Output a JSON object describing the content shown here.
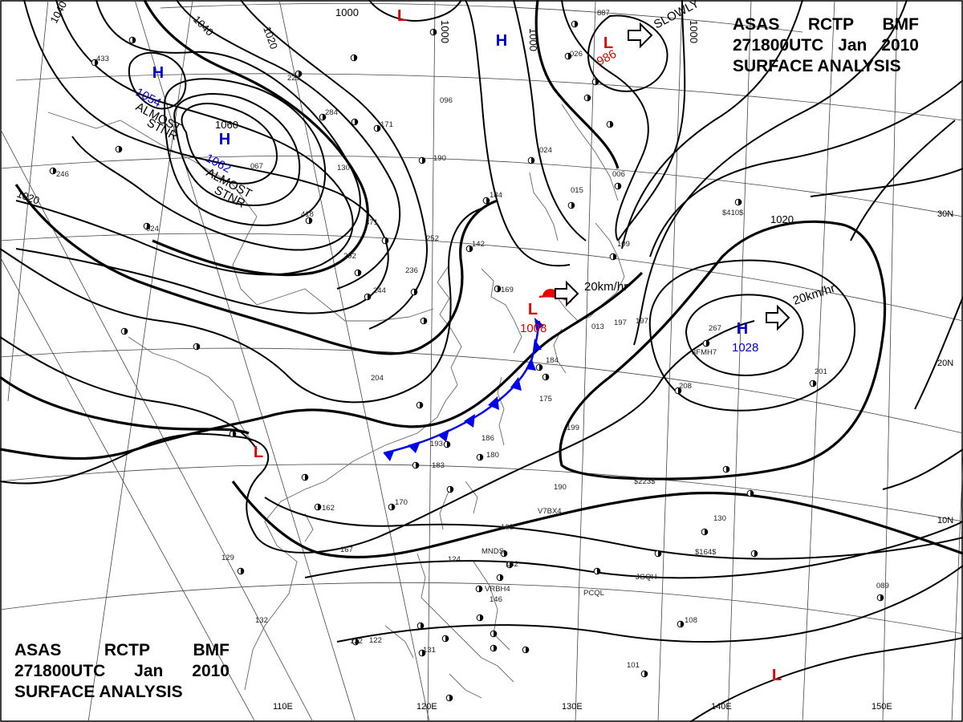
{
  "title": {
    "agency": "ASAS",
    "station": "RCTP",
    "office": "BMF",
    "time": "271800UTC",
    "month": "Jan",
    "year": "2010",
    "product": "SURFACE ANALYSIS"
  },
  "longitude_labels": [
    "110E",
    "120E",
    "130E",
    "140E",
    "150E"
  ],
  "latitude_labels": [
    "30N",
    "20N",
    "10N"
  ],
  "isobar_labels": [
    "1040",
    "1040",
    "1020",
    "1000",
    "1000",
    "1000",
    "1000",
    "1020",
    "1020",
    "1060"
  ],
  "pressure_centers": [
    {
      "type": "H",
      "value": "1054",
      "note": "ALMOST STNR",
      "color": "#0000cc",
      "value_color": "#0000cc"
    },
    {
      "type": "H",
      "value": "1062",
      "note": "ALMOST STNR",
      "color": "#0000cc",
      "value_color": "#0000cc"
    },
    {
      "type": "H",
      "value": "",
      "note": "",
      "color": "#0000cc",
      "value_color": "#0000cc"
    },
    {
      "type": "L",
      "value": "",
      "note": "",
      "color": "#dd0000",
      "value_color": "#dd0000"
    },
    {
      "type": "L",
      "value": "986",
      "note": "SLOWLY",
      "color": "#dd0000",
      "value_color": "#dd0000"
    },
    {
      "type": "L",
      "value": "1008",
      "note": "20km/hr",
      "color": "#dd0000",
      "value_color": "#dd0000"
    },
    {
      "type": "H",
      "value": "1028",
      "note": "20km/hr",
      "color": "#0000cc",
      "value_color": "#0000cc"
    },
    {
      "type": "L",
      "value": "",
      "note": "",
      "color": "#dd0000",
      "value_color": "#dd0000"
    },
    {
      "type": "L",
      "value": "",
      "note": "",
      "color": "#dd0000",
      "value_color": "#dd0000"
    }
  ],
  "fronts": [
    {
      "type": "cold",
      "color": "#0000ee"
    },
    {
      "type": "warm",
      "color": "#ee0000"
    }
  ],
  "station_labels": [
    "433",
    "229",
    "284",
    "171",
    "096",
    "067",
    "130",
    "418",
    "371",
    "190",
    "184",
    "252",
    "142",
    "292",
    "244",
    "236",
    "169",
    "204",
    "197",
    "175",
    "186",
    "180",
    "183",
    "170",
    "162",
    "167",
    "129",
    "132",
    "122",
    "131",
    "124",
    "146",
    "168",
    "132",
    "190",
    "199",
    "208",
    "201",
    "267",
    "130",
    "089",
    "101",
    "108",
    "024",
    "015",
    "006",
    "109",
    "184",
    "013",
    "197",
    "246",
    "024",
    "887",
    "026",
    "193",
    "122"
  ],
  "ship_labels": [
    "$410$",
    "$223$",
    "$164$",
    "V7BX4",
    "3FMH7",
    "MNDS",
    "VRBH4",
    "PCQL",
    "JGQH"
  ]
}
